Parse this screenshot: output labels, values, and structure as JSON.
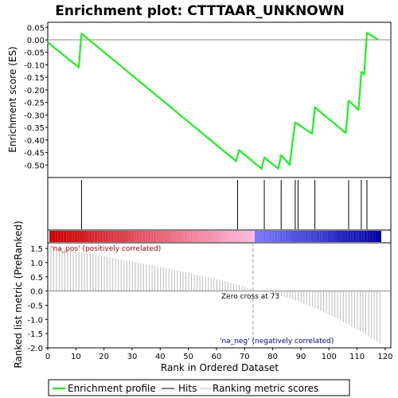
{
  "chart_data": {
    "type": "line",
    "title": "Enrichment plot: CTTTAAR_UNKNOWN",
    "es_panel": {
      "ylabel": "Enrichment score (ES)",
      "ylim": [
        -0.55,
        0.07
      ],
      "yticks": [
        "0.05",
        "0.00",
        "-0.05",
        "-0.10",
        "-0.15",
        "-0.20",
        "-0.25",
        "-0.30",
        "-0.35",
        "-0.40",
        "-0.45",
        "-0.50"
      ],
      "line_color": "#00ff00",
      "x": [
        0,
        11,
        12,
        67,
        68,
        76,
        77,
        82,
        83,
        86,
        88,
        94,
        95,
        106,
        107,
        110.5,
        111.5,
        112.5,
        113.5,
        117.5
      ],
      "y": [
        -0.01,
        -0.11,
        0.025,
        -0.485,
        -0.44,
        -0.515,
        -0.47,
        -0.515,
        -0.46,
        -0.5,
        -0.33,
        -0.375,
        -0.27,
        -0.372,
        -0.243,
        -0.28,
        -0.128,
        -0.138,
        0.028,
        0.0
      ]
    },
    "hits": [
      12,
      67.5,
      77,
      83,
      88,
      89,
      95,
      107,
      111.5,
      113.5
    ],
    "ranked_panel": {
      "ylabel": "Ranked list metric (PreRanked)",
      "xlabel": "Rank in Ordered Dataset",
      "ylim": [
        -2.0,
        1.7
      ],
      "yticks": [
        "1.5",
        "1.0",
        "0.5",
        "0.0",
        "-0.5",
        "-1.0",
        "-1.5",
        "-2.0"
      ],
      "xticks": [
        "0",
        "10",
        "20",
        "30",
        "40",
        "50",
        "60",
        "70",
        "80",
        "90",
        "100",
        "110",
        "120"
      ],
      "xlim": [
        0,
        122
      ],
      "zero_cross": 73,
      "zero_cross_label": "Zero cross at 73",
      "pos_label": "'na_pos' (positively correlated)",
      "neg_label": "'na_neg' (negatively correlated)",
      "pos_color": "#cc0000",
      "neg_color": "#0000aa",
      "metric_start": 1.55,
      "metric_end": -1.9
    },
    "legend": {
      "items": [
        {
          "label": "Enrichment profile",
          "color": "#00ff00"
        },
        {
          "label": "Hits",
          "color": "#000000"
        },
        {
          "label": "Ranking metric scores",
          "color": "#bbbbbb"
        }
      ]
    }
  }
}
